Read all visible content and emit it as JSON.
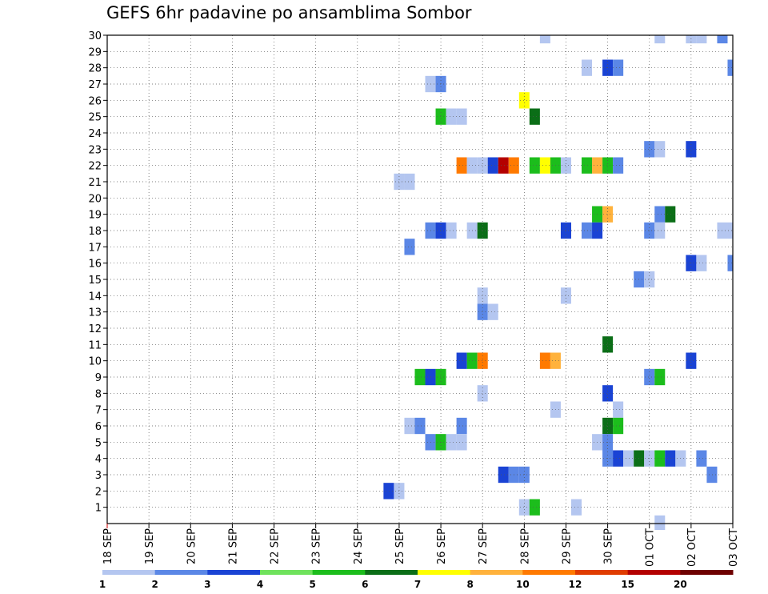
{
  "chart_data": {
    "type": "heatmap",
    "title": "GEFS 6hr padavine po ansamblima Sombor",
    "xlabel": "",
    "ylabel": "",
    "x_tick_labels": [
      "18 SEP",
      "19 SEP",
      "20 SEP",
      "21 SEP",
      "22 SEP",
      "23 SEP",
      "24 SEP",
      "25 SEP",
      "26 SEP",
      "27 SEP",
      "28 SEP",
      "29 SEP",
      "30 SEP",
      "01 OCT",
      "02 OCT",
      "03 OCT"
    ],
    "y_tick_labels": [
      "1",
      "2",
      "3",
      "4",
      "5",
      "6",
      "7",
      "8",
      "9",
      "10",
      "11",
      "12",
      "13",
      "14",
      "15",
      "16",
      "17",
      "18",
      "19",
      "20",
      "21",
      "22",
      "23",
      "24",
      "25",
      "26",
      "27",
      "28",
      "29",
      "30"
    ],
    "x_unit": "6-hour step from 18 SEP 00z",
    "xlim": [
      0,
      60
    ],
    "ylim": [
      0,
      30
    ],
    "grid": true,
    "colorbar": {
      "labels": [
        "1",
        "2",
        "3",
        "4",
        "5",
        "6",
        "7",
        "8",
        "10",
        "12",
        "15",
        "20"
      ],
      "colors": [
        "#b4c6f0",
        "#5b87e6",
        "#1a43d4",
        "#6fe25c",
        "#1cbd1c",
        "#0b6e17",
        "#ffff00",
        "#ffb23c",
        "#ff7a00",
        "#e03c00",
        "#b40000",
        "#6e0000"
      ]
    },
    "cells": [
      [
        42,
        30,
        1
      ],
      [
        53,
        30,
        1
      ],
      [
        56,
        30,
        1
      ],
      [
        57,
        30,
        1
      ],
      [
        59,
        30,
        2
      ],
      [
        46,
        28,
        1
      ],
      [
        48,
        28,
        3
      ],
      [
        49,
        28,
        2
      ],
      [
        60,
        28,
        2
      ],
      [
        31,
        27,
        1
      ],
      [
        32,
        27,
        2
      ],
      [
        40,
        26,
        7
      ],
      [
        32,
        25,
        5
      ],
      [
        33,
        25,
        1
      ],
      [
        34,
        25,
        1
      ],
      [
        41,
        25,
        6
      ],
      [
        52,
        23,
        2
      ],
      [
        53,
        23,
        1
      ],
      [
        56,
        23,
        3
      ],
      [
        34,
        22,
        9
      ],
      [
        35,
        22,
        1
      ],
      [
        36,
        22,
        1
      ],
      [
        37,
        22,
        3
      ],
      [
        38,
        22,
        11
      ],
      [
        39,
        22,
        9
      ],
      [
        41,
        22,
        5
      ],
      [
        42,
        22,
        7
      ],
      [
        43,
        22,
        5
      ],
      [
        44,
        22,
        1
      ],
      [
        46,
        22,
        5
      ],
      [
        47,
        22,
        8
      ],
      [
        48,
        22,
        5
      ],
      [
        49,
        22,
        2
      ],
      [
        28,
        21,
        1
      ],
      [
        29,
        21,
        1
      ],
      [
        47,
        19,
        5
      ],
      [
        48,
        19,
        8
      ],
      [
        53,
        19,
        2
      ],
      [
        54,
        19,
        6
      ],
      [
        31,
        18,
        2
      ],
      [
        32,
        18,
        3
      ],
      [
        33,
        18,
        1
      ],
      [
        35,
        18,
        1
      ],
      [
        36,
        18,
        6
      ],
      [
        44,
        18,
        3
      ],
      [
        46,
        18,
        2
      ],
      [
        47,
        18,
        3
      ],
      [
        52,
        18,
        2
      ],
      [
        53,
        18,
        1
      ],
      [
        59,
        18,
        1
      ],
      [
        60,
        18,
        1
      ],
      [
        29,
        17,
        2
      ],
      [
        56,
        16,
        3
      ],
      [
        57,
        16,
        1
      ],
      [
        60,
        16,
        2
      ],
      [
        51,
        15,
        2
      ],
      [
        52,
        15,
        1
      ],
      [
        36,
        14,
        1
      ],
      [
        44,
        14,
        1
      ],
      [
        36,
        13,
        2
      ],
      [
        37,
        13,
        1
      ],
      [
        48,
        11,
        6
      ],
      [
        34,
        10,
        3
      ],
      [
        35,
        10,
        5
      ],
      [
        36,
        10,
        9
      ],
      [
        42,
        10,
        9
      ],
      [
        43,
        10,
        8
      ],
      [
        56,
        10,
        3
      ],
      [
        30,
        9,
        5
      ],
      [
        31,
        9,
        3
      ],
      [
        32,
        9,
        5
      ],
      [
        52,
        9,
        2
      ],
      [
        53,
        9,
        5
      ],
      [
        36,
        8,
        1
      ],
      [
        48,
        8,
        3
      ],
      [
        43,
        7,
        1
      ],
      [
        49,
        7,
        1
      ],
      [
        29,
        6,
        1
      ],
      [
        30,
        6,
        2
      ],
      [
        34,
        6,
        2
      ],
      [
        48,
        6,
        6
      ],
      [
        49,
        6,
        5
      ],
      [
        31,
        5,
        2
      ],
      [
        32,
        5,
        5
      ],
      [
        33,
        5,
        1
      ],
      [
        34,
        5,
        1
      ],
      [
        47,
        5,
        1
      ],
      [
        48,
        5,
        2
      ],
      [
        48,
        4,
        2
      ],
      [
        49,
        4,
        3
      ],
      [
        50,
        4,
        1
      ],
      [
        51,
        4,
        6
      ],
      [
        52,
        4,
        1
      ],
      [
        53,
        4,
        5
      ],
      [
        54,
        4,
        3
      ],
      [
        55,
        4,
        1
      ],
      [
        57,
        4,
        2
      ],
      [
        38,
        3,
        3
      ],
      [
        39,
        3,
        2
      ],
      [
        40,
        3,
        2
      ],
      [
        58,
        3,
        2
      ],
      [
        27,
        2,
        3
      ],
      [
        28,
        2,
        1
      ],
      [
        40,
        1,
        1
      ],
      [
        41,
        1,
        5
      ],
      [
        45,
        1,
        1
      ],
      [
        53,
        0,
        1
      ]
    ]
  }
}
